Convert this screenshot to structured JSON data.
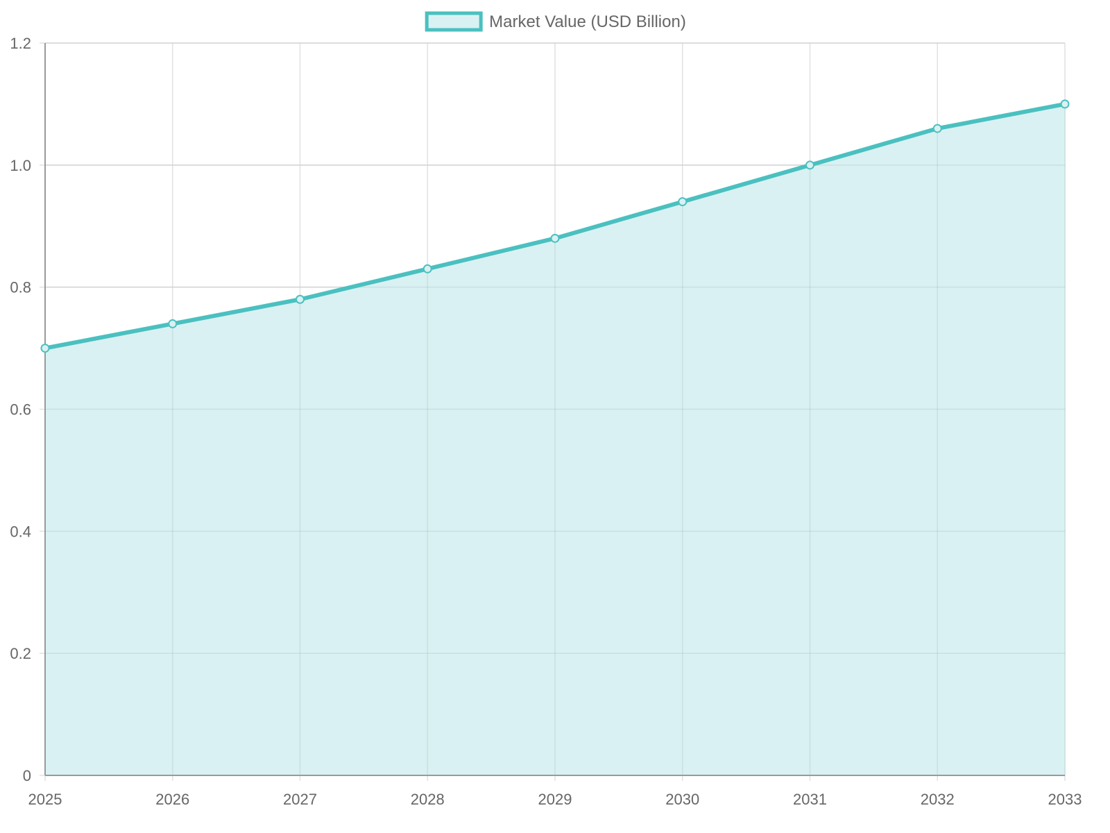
{
  "chart_data": {
    "type": "area",
    "x": [
      "2025",
      "2026",
      "2027",
      "2028",
      "2029",
      "2030",
      "2031",
      "2032",
      "2033"
    ],
    "series": [
      {
        "name": "Market Value (USD Billion)",
        "values": [
          0.7,
          0.74,
          0.78,
          0.83,
          0.88,
          0.94,
          1.0,
          1.06,
          1.1
        ],
        "line_color": "#4bc0c0",
        "fill_color": "#d9f1f2"
      }
    ],
    "y_ticks": [
      "0",
      "0.2",
      "0.4",
      "0.6",
      "0.8",
      "1.0",
      "1.2"
    ],
    "ylim": [
      0,
      1.2
    ],
    "grid": true,
    "legend_position": "top-center",
    "title": "",
    "xlabel": "",
    "ylabel": ""
  }
}
